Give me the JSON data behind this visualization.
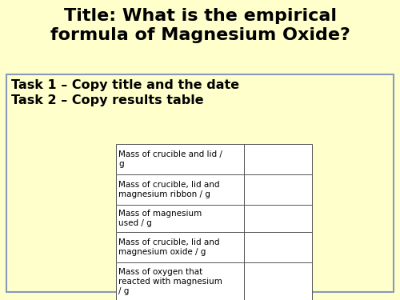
{
  "background_color": "#ffffcc",
  "title_line1": "Title: What is the empirical",
  "title_line2": "formula of Magnesium Oxide?",
  "task_line1": "Task 1 – Copy title and the date",
  "task_line2": "Task 2 – Copy results table",
  "table_rows": [
    "Mass of crucible and lid /\ng",
    "Mass of crucible, lid and\nmagnesium ribbon / g",
    "Mass of magnesium\nused / g",
    "Mass of crucible, lid and\nmagnesium oxide / g",
    "Mass of oxygen that\nreacted with magnesium\n/ g"
  ],
  "box_border_color": "#8899bb",
  "table_border_color": "#555555",
  "title_fontsize": 16,
  "task_fontsize": 11.5,
  "table_fontsize": 7.5,
  "fig_width": 5.0,
  "fig_height": 3.75,
  "dpi": 100
}
